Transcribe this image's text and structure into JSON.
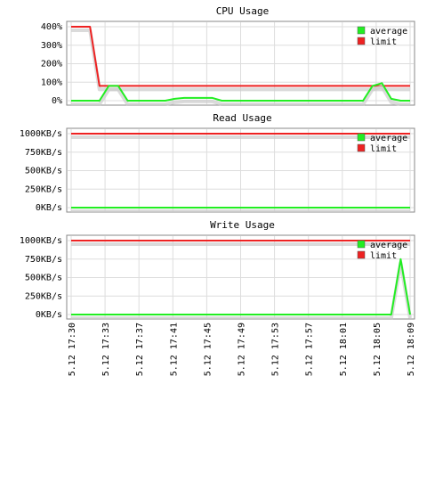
{
  "colors": {
    "average": "#22ee22",
    "limit": "#ee2222",
    "grid": "#dddddd",
    "frame": "#888888",
    "text": "#000000",
    "shadow": "#cccccc"
  },
  "x_ticks": [
    "5.12 17:30",
    "5.12 17:33",
    "5.12 17:37",
    "5.12 17:41",
    "5.12 17:45",
    "5.12 17:49",
    "5.12 17:53",
    "5.12 17:57",
    "5.12 18:01",
    "5.12 18:05",
    "5.12 18:09"
  ],
  "chart_data": [
    {
      "type": "line",
      "title": "CPU Usage",
      "y_ticks": [
        "400%",
        "300%",
        "200%",
        "100%",
        "0%"
      ],
      "ylim": [
        0,
        400
      ],
      "legend": "top-right",
      "grid": true,
      "series": [
        {
          "name": "average",
          "x": [
            0,
            3,
            4,
            5,
            6,
            10,
            11,
            12,
            13,
            14,
            15,
            16,
            31,
            32,
            33,
            34,
            35,
            36
          ],
          "values": [
            0,
            0,
            80,
            80,
            0,
            0,
            10,
            15,
            15,
            15,
            15,
            0,
            0,
            80,
            95,
            10,
            0,
            0
          ]
        },
        {
          "name": "limit",
          "x": [
            0,
            2,
            3,
            36
          ],
          "values": [
            400,
            400,
            80,
            80
          ]
        }
      ]
    },
    {
      "type": "line",
      "title": "Read Usage",
      "y_ticks": [
        "1000KB/s",
        "750KB/s",
        "500KB/s",
        "250KB/s",
        "0KB/s"
      ],
      "ylim": [
        0,
        1000
      ],
      "legend": "top-right",
      "grid": true,
      "series": [
        {
          "name": "average",
          "x": [
            0,
            36
          ],
          "values": [
            0,
            0
          ]
        },
        {
          "name": "limit",
          "x": [
            0,
            36
          ],
          "values": [
            1000,
            1000
          ]
        }
      ]
    },
    {
      "type": "line",
      "title": "Write Usage",
      "y_ticks": [
        "1000KB/s",
        "750KB/s",
        "500KB/s",
        "250KB/s",
        "0KB/s"
      ],
      "ylim": [
        0,
        1000
      ],
      "legend": "top-right",
      "grid": true,
      "series": [
        {
          "name": "average",
          "x": [
            0,
            34,
            35,
            36
          ],
          "values": [
            0,
            0,
            750,
            0
          ]
        },
        {
          "name": "limit",
          "x": [
            0,
            36
          ],
          "values": [
            1000,
            1000
          ]
        }
      ]
    }
  ]
}
